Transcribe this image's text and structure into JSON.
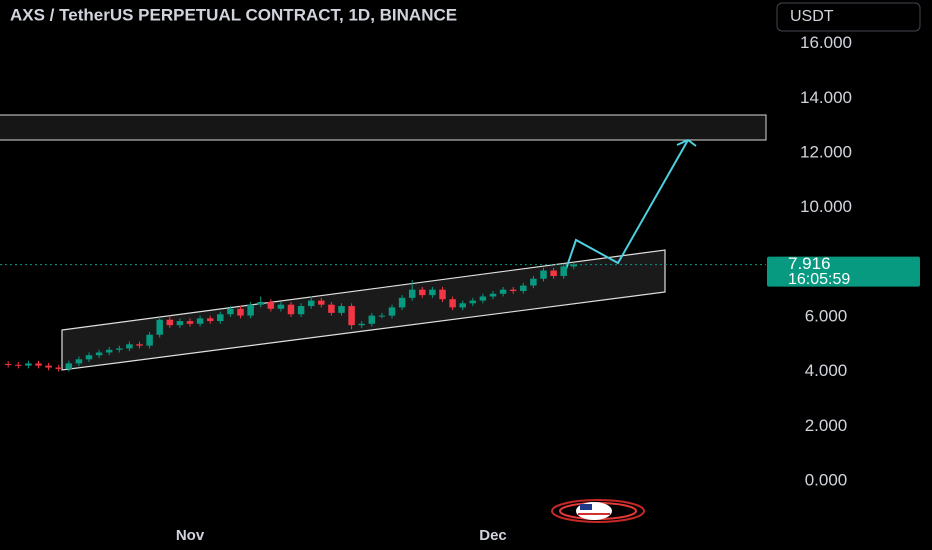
{
  "chart_data": {
    "type": "candlestick",
    "title": "AXS / TetherUS PERPETUAL CONTRACT, 1D, BINANCE",
    "currency_button": "USDT",
    "categories": [
      null,
      null,
      null,
      null,
      null,
      null,
      null,
      null,
      null,
      null,
      null,
      null,
      null,
      null,
      null,
      null,
      null,
      null,
      "Nov",
      null,
      null,
      null,
      null,
      null,
      null,
      null,
      null,
      null,
      null,
      null,
      null,
      null,
      null,
      null,
      null,
      null,
      null,
      null,
      null,
      null,
      null,
      null,
      null,
      null,
      null,
      null,
      null,
      null,
      "Dec",
      null,
      null,
      null,
      null,
      null,
      null,
      null,
      null
    ],
    "open": [
      4.28,
      4.25,
      4.22,
      4.3,
      4.22,
      4.15,
      4.1,
      4.3,
      4.45,
      4.6,
      4.7,
      4.8,
      4.85,
      5.0,
      4.95,
      5.35,
      5.9,
      5.7,
      5.85,
      5.75,
      5.95,
      5.85,
      6.1,
      6.3,
      6.05,
      6.45,
      6.55,
      6.3,
      6.45,
      6.1,
      6.4,
      6.6,
      6.45,
      6.15,
      6.4,
      5.7,
      5.75,
      6.05,
      6.05,
      6.35,
      6.7,
      7.0,
      6.8,
      7.0,
      6.65,
      6.35,
      6.5,
      6.6,
      6.75,
      6.85,
      7.0,
      6.95,
      7.15,
      7.4,
      7.7,
      7.5,
      7.85
    ],
    "high": [
      4.38,
      4.35,
      4.4,
      4.4,
      4.32,
      4.25,
      4.4,
      4.55,
      4.7,
      4.8,
      4.9,
      4.95,
      5.1,
      5.1,
      5.45,
      6.0,
      6.05,
      5.95,
      5.95,
      6.05,
      6.05,
      6.2,
      6.4,
      6.4,
      6.55,
      6.75,
      6.65,
      6.55,
      6.55,
      6.5,
      6.75,
      6.7,
      6.55,
      6.5,
      6.5,
      5.85,
      6.15,
      6.15,
      6.45,
      6.8,
      7.35,
      7.1,
      7.1,
      7.1,
      6.75,
      6.6,
      6.7,
      6.85,
      6.95,
      7.1,
      7.1,
      7.25,
      7.5,
      7.8,
      7.8,
      7.95,
      8.0
    ],
    "low": [
      4.15,
      4.12,
      4.12,
      4.12,
      4.05,
      4.0,
      4.0,
      4.2,
      4.35,
      4.5,
      4.6,
      4.7,
      4.75,
      4.85,
      4.85,
      5.25,
      5.6,
      5.6,
      5.65,
      5.65,
      5.75,
      5.75,
      6.0,
      5.95,
      5.95,
      6.35,
      6.2,
      6.2,
      6.0,
      6.0,
      6.3,
      6.35,
      6.05,
      6.05,
      5.55,
      5.6,
      5.65,
      5.95,
      5.95,
      6.25,
      6.6,
      6.7,
      6.7,
      6.55,
      6.25,
      6.25,
      6.4,
      6.5,
      6.65,
      6.75,
      6.85,
      6.85,
      7.05,
      7.3,
      7.4,
      7.4,
      7.75
    ],
    "close": [
      4.25,
      4.22,
      4.3,
      4.22,
      4.15,
      4.1,
      4.3,
      4.45,
      4.6,
      4.7,
      4.8,
      4.85,
      5.0,
      4.95,
      5.35,
      5.9,
      5.7,
      5.85,
      5.75,
      5.95,
      5.85,
      6.1,
      6.3,
      6.05,
      6.45,
      6.55,
      6.3,
      6.45,
      6.1,
      6.4,
      6.6,
      6.45,
      6.15,
      6.4,
      5.7,
      5.75,
      6.05,
      6.05,
      6.35,
      6.7,
      7.0,
      6.8,
      7.0,
      6.65,
      6.35,
      6.5,
      6.6,
      6.75,
      6.85,
      7.0,
      6.95,
      7.15,
      7.4,
      7.7,
      7.5,
      7.85,
      7.92
    ],
    "up_color": "#089981",
    "down_color": "#f23645",
    "last_price": 7.916,
    "countdown": "16:05:59",
    "ylim": [
      -1.43,
      17.6
    ],
    "yticks": [
      {
        "value": 0,
        "label": "0.000"
      },
      {
        "value": 2,
        "label": "2.000"
      },
      {
        "value": 4,
        "label": "4.000"
      },
      {
        "value": 6,
        "label": "6.000"
      },
      {
        "value": 10,
        "label": "10.000"
      },
      {
        "value": 12,
        "label": "12.000"
      },
      {
        "value": 14,
        "label": "14.000"
      },
      {
        "value": 16,
        "label": "16.000"
      }
    ]
  }
}
